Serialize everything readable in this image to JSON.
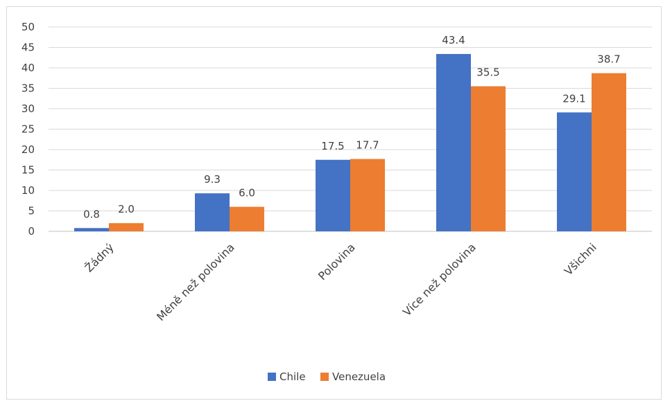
{
  "chart_data": {
    "type": "bar",
    "title": "",
    "xlabel": "",
    "ylabel": "",
    "categories": [
      "Žádný",
      "Méně než polovina",
      "Polovina",
      "Více než polovina",
      "Všichni"
    ],
    "series": [
      {
        "name": "Chile",
        "color": "#4472c4",
        "values": [
          0.8,
          9.3,
          17.5,
          43.4,
          29.1
        ]
      },
      {
        "name": "Venezuela",
        "color": "#ed7d31",
        "values": [
          2.0,
          6.0,
          17.7,
          35.5,
          38.7
        ]
      }
    ],
    "ylim": [
      0,
      50
    ],
    "yticks": [
      0,
      5,
      10,
      15,
      20,
      25,
      30,
      35,
      40,
      45,
      50
    ],
    "grid": true,
    "data_labels": true,
    "legend_position": "bottom"
  }
}
